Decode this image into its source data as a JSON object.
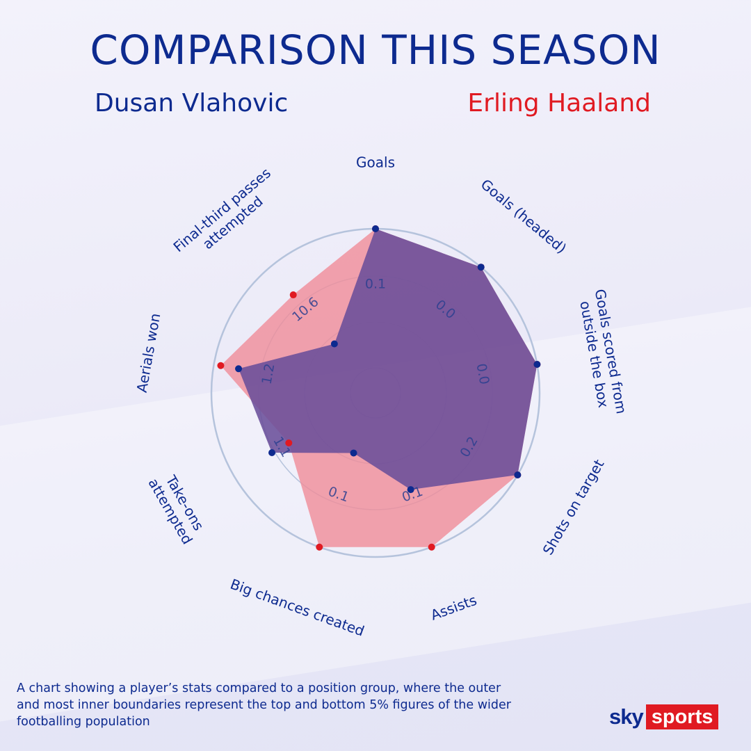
{
  "header": {
    "title": "COMPARISON THIS SEASON",
    "player_a": "Dusan Vlahovic",
    "player_b": "Erling Haaland"
  },
  "caption": "A chart showing a player’s stats compared to a position group,  where the outer and most inner boundaries represent the top  and bottom 5% figures of the wider footballing population",
  "logo": {
    "part1": "sky",
    "part2": "sports"
  },
  "colors": {
    "player_a": "#0d2a8f",
    "player_b": "#e01a22",
    "fill_a": "#6a4f9a",
    "fill_b": "#f08c99",
    "ring": "#b5c3dc"
  },
  "chart_data": {
    "type": "radar",
    "axes": [
      "Goals",
      "Goals (headed)",
      "Goals scored from outside the box",
      "Shots on target",
      "Assists",
      "Big chances created",
      "Take-ons attempted",
      "Aerials won",
      "Final-third passes attempted"
    ],
    "axis_label_lines": [
      [
        "Goals"
      ],
      [
        "Goals (headed)"
      ],
      [
        "Goals scored from",
        "outside the box"
      ],
      [
        "Shots on target"
      ],
      [
        "Assists"
      ],
      [
        "Big chances created"
      ],
      [
        "Take-ons",
        "attempted"
      ],
      [
        "Aerials won"
      ],
      [
        "Final-third passes",
        "attempted"
      ]
    ],
    "percentile_range": [
      0,
      1
    ],
    "series": [
      {
        "name": "Dusan Vlahovic",
        "values": [
          1.0,
          1.0,
          1.0,
          1.0,
          0.56,
          0.28,
          0.68,
          0.82,
          0.28
        ]
      },
      {
        "name": "Erling Haaland",
        "values": [
          1.0,
          1.0,
          1.0,
          1.0,
          1.0,
          1.0,
          0.54,
          0.95,
          0.74
        ]
      }
    ],
    "value_labels": [
      {
        "axis": 0,
        "text": "0.1"
      },
      {
        "axis": 1,
        "text": "0.0"
      },
      {
        "axis": 2,
        "text": "0.0"
      },
      {
        "axis": 3,
        "text": "0.2"
      },
      {
        "axis": 4,
        "text": "0.1"
      },
      {
        "axis": 5,
        "text": "0.1"
      },
      {
        "axis": 6,
        "text": "1.1"
      },
      {
        "axis": 7,
        "text": "1.2"
      },
      {
        "axis": 8,
        "text": "10.6"
      }
    ],
    "grid": true
  }
}
